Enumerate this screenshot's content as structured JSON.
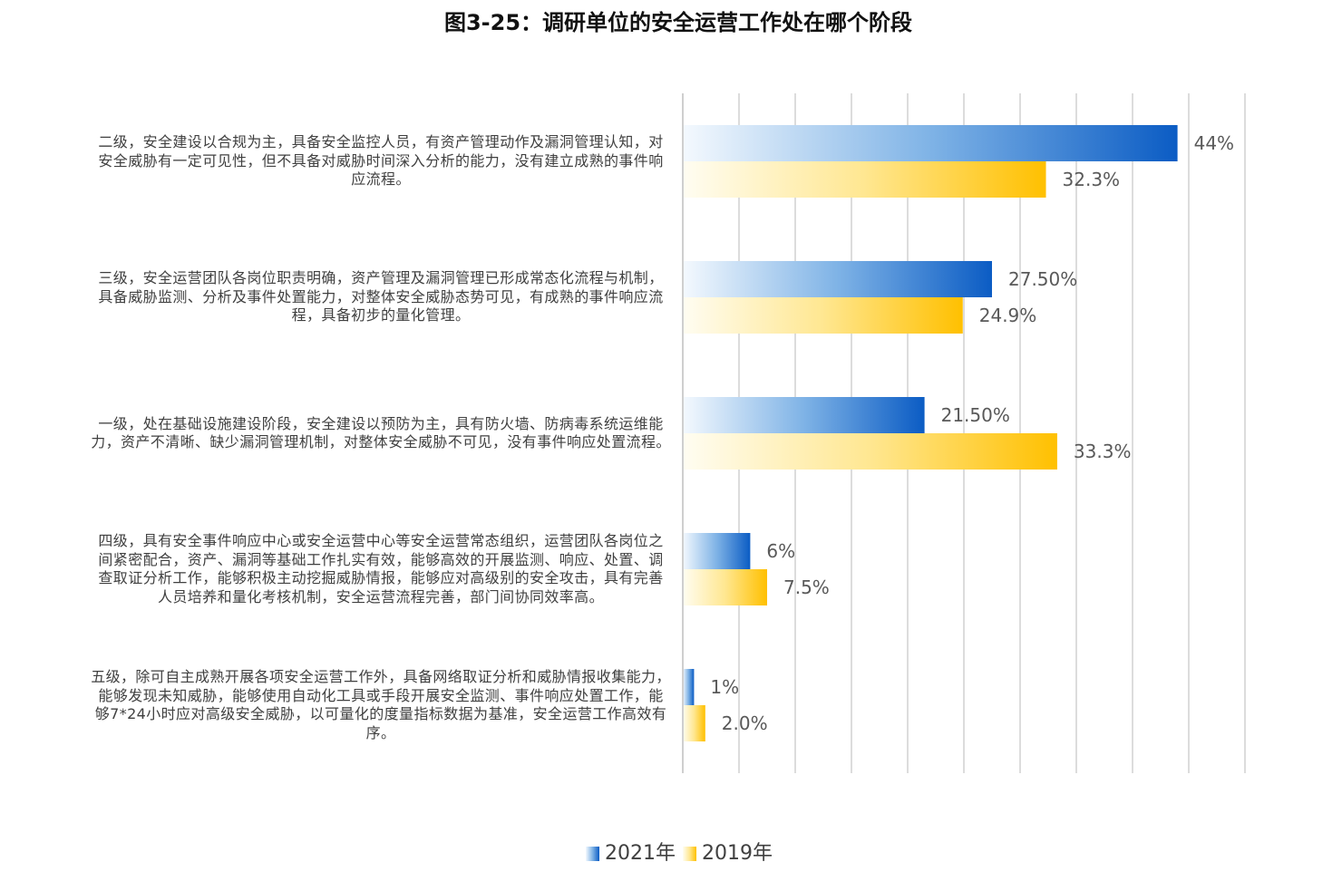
{
  "chart_data": {
    "type": "bar",
    "orientation": "horizontal",
    "title": "图3-25：调研单位的安全运营工作处在哪个阶段",
    "xlabel": "",
    "ylabel": "",
    "xlim": [
      0,
      50
    ],
    "grid": true,
    "legend": "bottom",
    "categories": [
      "二级，安全建设以合规为主，具备安全监控人员，有资产管理动作及漏洞管理认知，对\n安全威胁有一定可见性，但不具备对威胁时间深入分析的能力，没有建立成熟的事件响\n应流程。",
      "三级，安全运营团队各岗位职责明确，资产管理及漏洞管理已形成常态化流程与机制，\n具备威胁监测、分析及事件处置能力，对整体安全威胁态势可见，有成熟的事件响应流\n程，具备初步的量化管理。",
      "一级，处在基础设施建设阶段，安全建设以预防为主，具有防火墙、防病毒系统运维能\n力，资产不清晰、缺少漏洞管理机制，对整体安全威胁不可见，没有事件响应处置流程。",
      "四级，具有安全事件响应中心或安全运营中心等安全运营常态组织，运营团队各岗位之\n间紧密配合，资产、漏洞等基础工作扎实有效，能够高效的开展监测、响应、处置、调\n查取证分析工作，能够积极主动挖掘威胁情报，能够应对高级别的安全攻击，具有完善\n人员培养和量化考核机制，安全运营流程完善，部门间协同效率高。",
      "五级，除可自主成熟开展各项安全运营工作外，具备网络取证分析和威胁情报收集能力，\n能够发现未知威胁，能够使用自动化工具或手段开展安全监测、事件响应处置工作，能\n够7*24小时应对高级安全威胁，以可量化的度量指标数据为基准，安全运营工作高效有\n序。"
    ],
    "series": [
      {
        "name": "2021年",
        "values": [
          44,
          27.5,
          21.5,
          6,
          1
        ],
        "labels": [
          "44%",
          "27.50%",
          "21.50%",
          "6%",
          "1%"
        ],
        "color": "#0b5cc4",
        "gradient": [
          "#f4f9fe",
          "#7fb3e6",
          "#0b5cc4"
        ]
      },
      {
        "name": "2019年",
        "values": [
          32.3,
          24.9,
          33.3,
          7.5,
          2.0
        ],
        "labels": [
          "32.3%",
          "24.9%",
          "33.3%",
          "7.5%",
          "2.0%"
        ],
        "color": "#ffc000",
        "gradient": [
          "#fffdf2",
          "#ffe791",
          "#ffc000"
        ]
      }
    ]
  }
}
